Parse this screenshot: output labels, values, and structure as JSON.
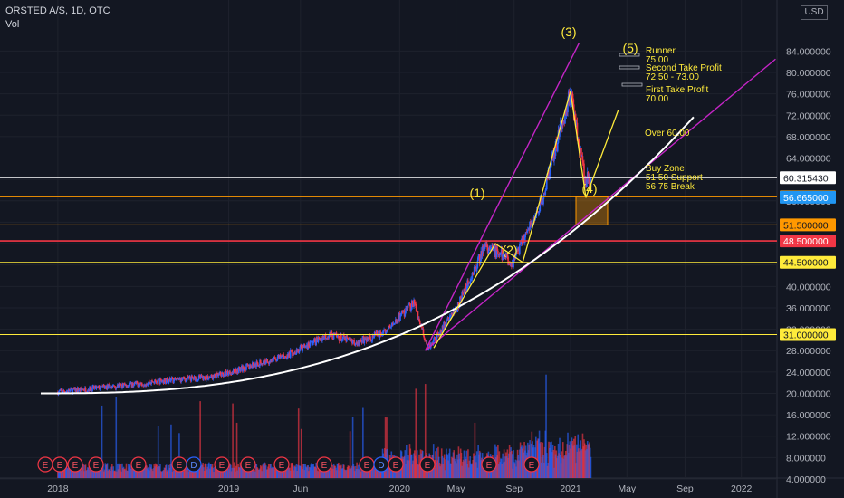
{
  "header": {
    "title": "ORSTED A/S, 1D, OTC",
    "volume_label": "Vol"
  },
  "currency": "USD",
  "colors": {
    "background": "#131722",
    "grid": "#1e222d",
    "axis_text": "#b2b5be",
    "annotation": "#ffeb3b",
    "channel": "#c425c6",
    "curve": "#ffffff",
    "orange_line": "#ff9800",
    "red_line": "#f23645",
    "last_price": "#2196f3",
    "volume_up": "#2962ff",
    "volume_down": "#f23645",
    "earnings": "#f23645",
    "dividend": "#2962ff"
  },
  "chart_data": {
    "type": "candlestick",
    "symbol": "ORSTED A/S",
    "interval": "1D",
    "exchange": "OTC",
    "yaxis": {
      "ticks": [
        "84.000000",
        "80.000000",
        "76.000000",
        "72.000000",
        "68.000000",
        "64.000000",
        "60.000000",
        "56.000000",
        "52.000000",
        "48.000000",
        "44.000000",
        "40.000000",
        "36.000000",
        "32.000000",
        "28.000000",
        "24.000000",
        "20.000000",
        "16.000000",
        "12.000000",
        "8.000000",
        "4.000000"
      ]
    },
    "xaxis": {
      "ticks": [
        "2018",
        "2019",
        "Jun",
        "2020",
        "May",
        "Sep",
        "2021",
        "May",
        "Sep",
        "2022"
      ]
    },
    "approx_price_path": [
      [
        "2017-12",
        20.0
      ],
      [
        "2018-03",
        20.8
      ],
      [
        "2018-06",
        21.6
      ],
      [
        "2018-09",
        22.5
      ],
      [
        "2018-12",
        23.1
      ],
      [
        "2019-03",
        25.5
      ],
      [
        "2019-05",
        27.0
      ],
      [
        "2019-08",
        31.0
      ],
      [
        "2019-10",
        29.5
      ],
      [
        "2019-12",
        31.5
      ],
      [
        "2020-02",
        37.0
      ],
      [
        "2020-03",
        28.5
      ],
      [
        "2020-05",
        36.0
      ],
      [
        "2020-07",
        47.5
      ],
      [
        "2020-09",
        44.5
      ],
      [
        "2020-11",
        56.0
      ],
      [
        "2021-01",
        76.5
      ],
      [
        "2021-02",
        60.0
      ]
    ],
    "horizontal_levels": [
      {
        "price": 60.31543,
        "label": "60.315430",
        "color": "white"
      },
      {
        "price": 56.75,
        "label": "56.750000",
        "color": "orange"
      },
      {
        "price": 56.665,
        "label": "56.665000",
        "color": "last"
      },
      {
        "price": 51.5,
        "label": "51.500000",
        "color": "orange"
      },
      {
        "price": 48.5,
        "label": "48.500000",
        "color": "red"
      },
      {
        "price": 44.5,
        "label": "44.500000",
        "color": "yellow"
      },
      {
        "price": 31.0,
        "label": "31.000000",
        "color": "yellow"
      }
    ],
    "wave_labels": [
      {
        "label": "(1)",
        "date": "2020-07",
        "price": 48.0
      },
      {
        "label": "(2)",
        "date": "2020-09",
        "price": 44.5
      },
      {
        "label": "(3)",
        "date": "2021-01",
        "price": 76.5
      },
      {
        "label": "(4)",
        "date": "2021-02",
        "price": 56.6
      },
      {
        "label": "(5)",
        "date": "2021-04",
        "price": 75.0
      }
    ],
    "annotations": [
      {
        "text": "Runner",
        "sub": "75.00"
      },
      {
        "text": "Second Take Profit",
        "sub": "72.50 - 73.00"
      },
      {
        "text": "First Take Profit",
        "sub": "70.00"
      },
      {
        "text": "Over 60.00"
      },
      {
        "text": "Buy Zone",
        "lines": [
          "51.50 Support",
          "56.75 Break"
        ]
      }
    ],
    "volume_axis": "combined",
    "events": [
      "E",
      "E",
      "E",
      "E",
      "E",
      "E",
      "D",
      "E",
      "E",
      "E",
      "E",
      "E",
      "D",
      "E",
      "E",
      "E",
      "E"
    ],
    "event_types": {
      "E": "earnings",
      "D": "dividend"
    }
  }
}
